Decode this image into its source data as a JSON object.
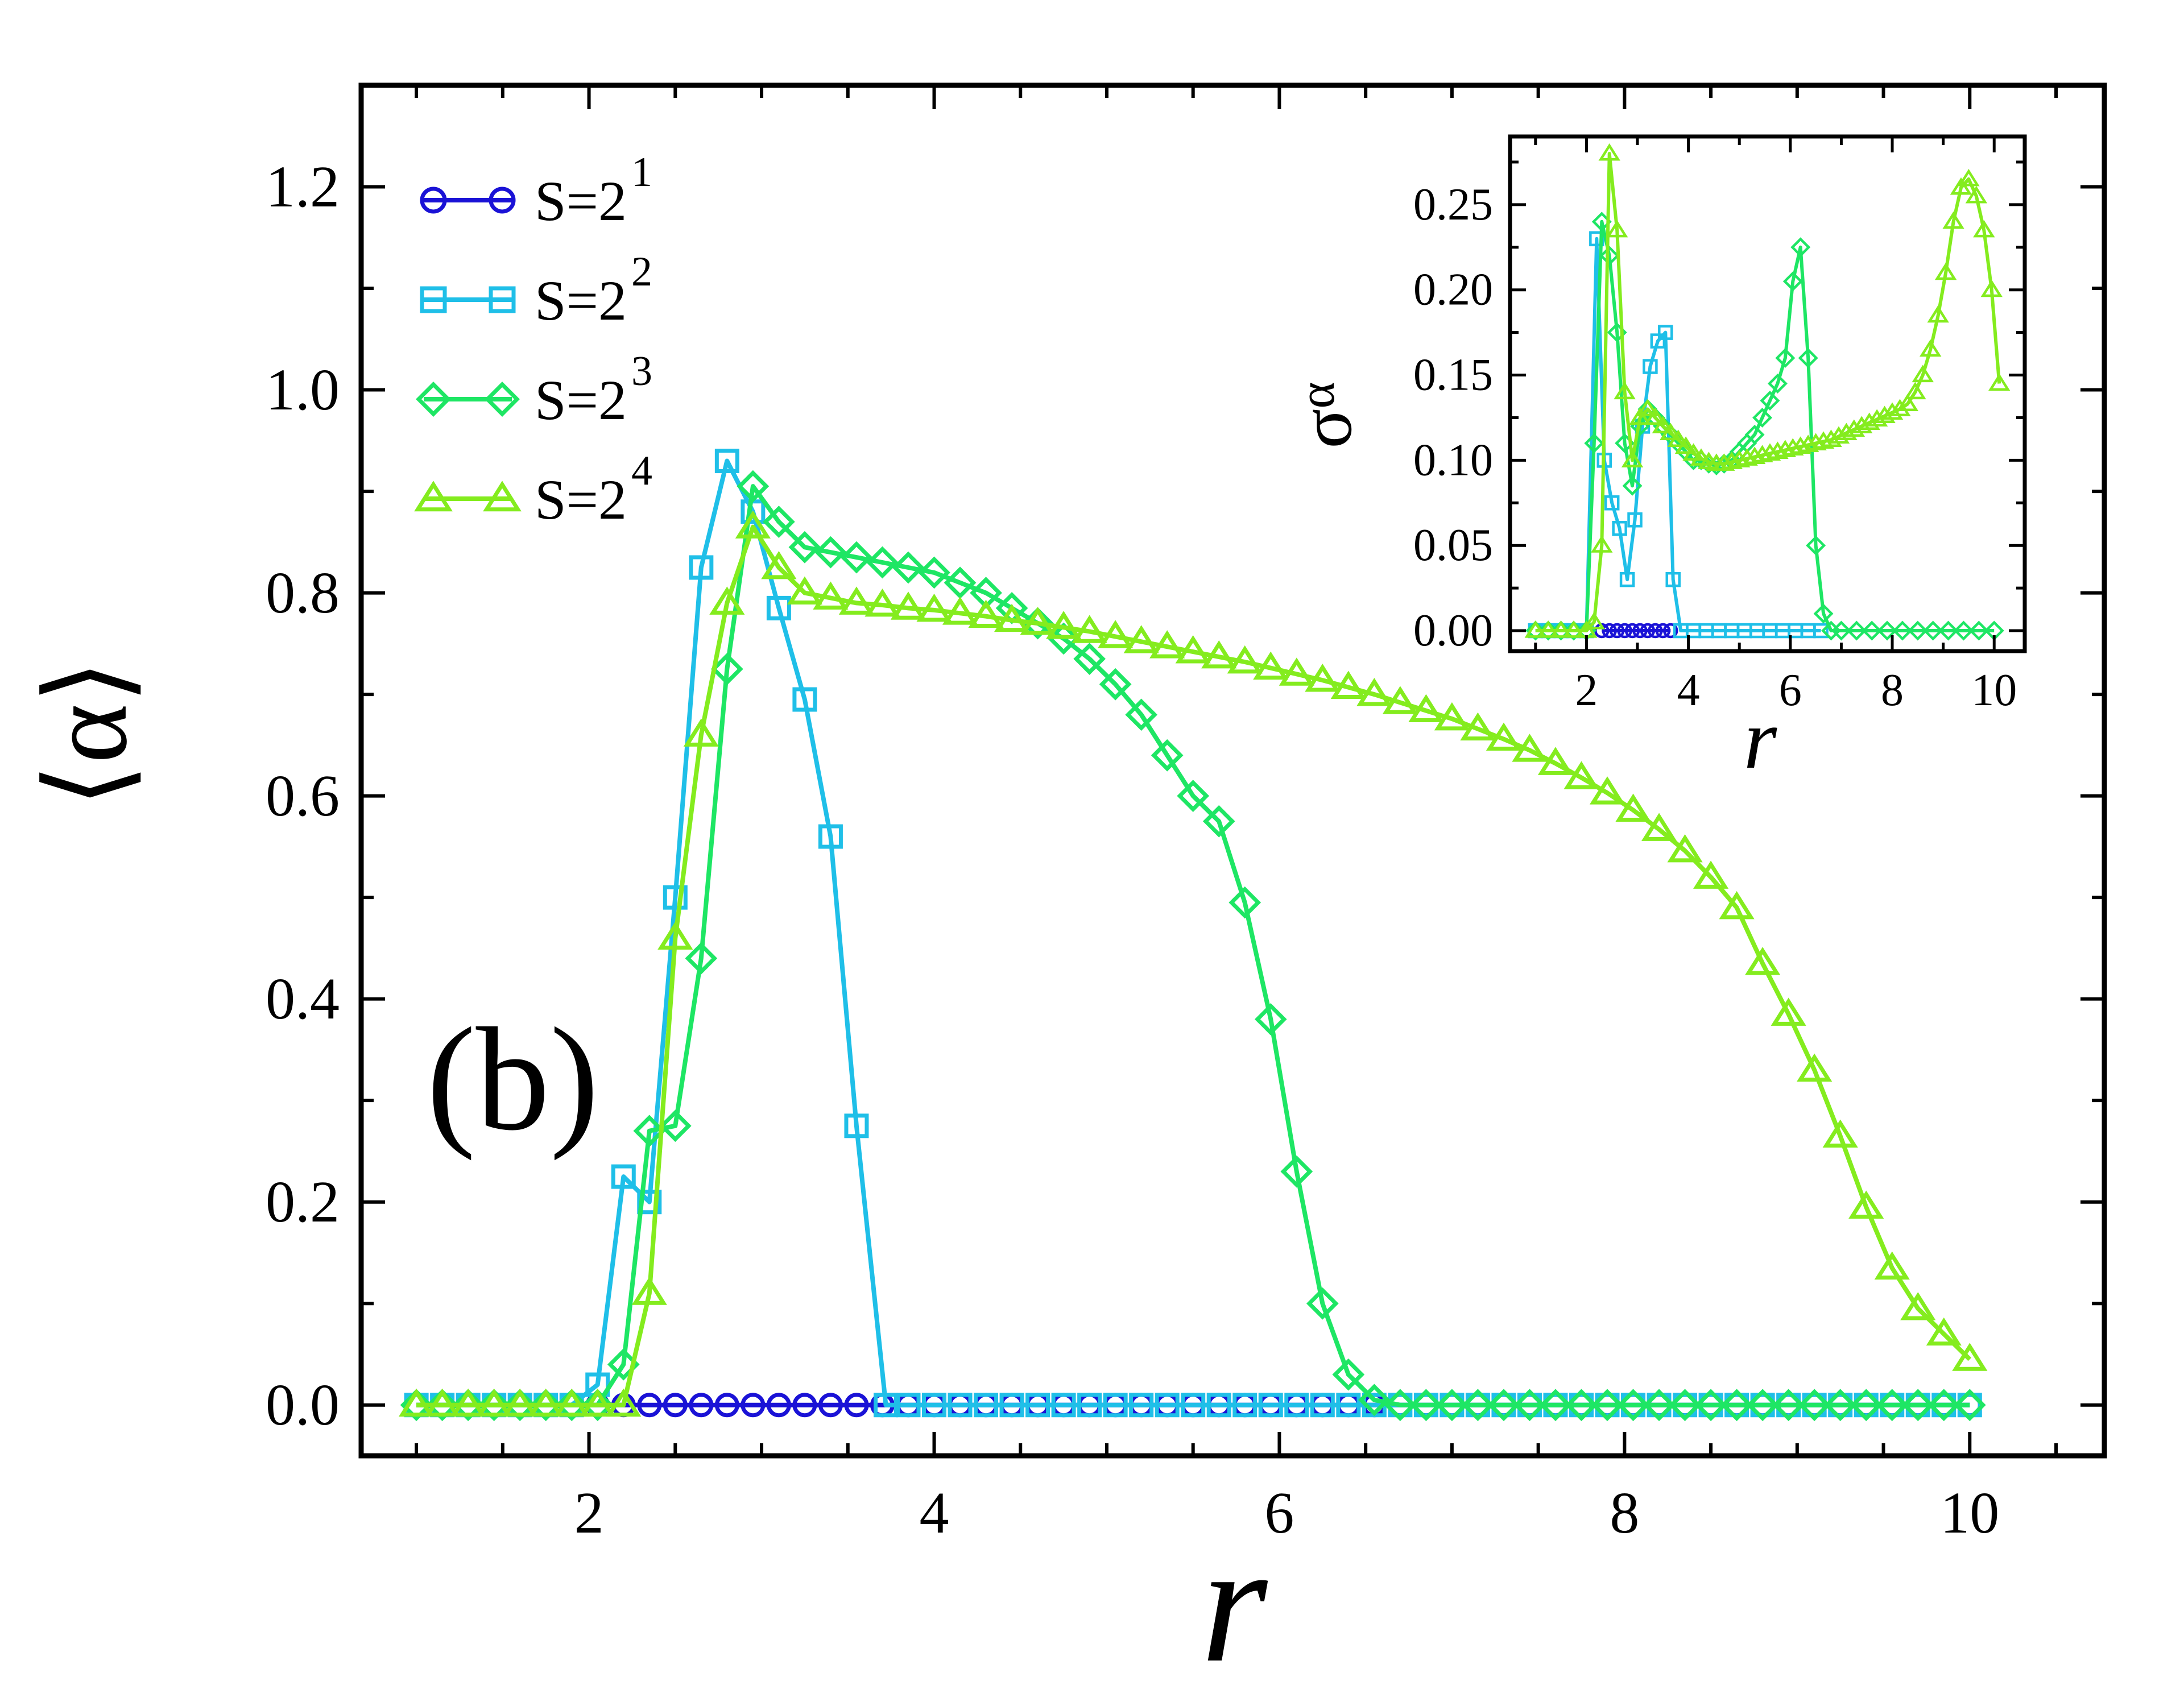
{
  "chart_data": {
    "type": "line",
    "panel_label": "(b)",
    "main": {
      "xlabel": "r",
      "ylabel": "⟨α⟩",
      "xlim": [
        0.68,
        10.78
      ],
      "ylim": [
        -0.05,
        1.3
      ],
      "xticks": [
        2,
        4,
        6,
        8,
        10
      ],
      "xtick_labels": [
        "2",
        "4",
        "6",
        "8",
        "10"
      ],
      "yticks": [
        0.0,
        0.2,
        0.4,
        0.6,
        0.8,
        1.0,
        1.2
      ],
      "ytick_labels": [
        "0.0",
        "0.2",
        "0.4",
        "0.6",
        "0.8",
        "1.0",
        "1.2"
      ],
      "legend_position": "top-left",
      "series": [
        {
          "name": "S=2^1",
          "label_base": "S=2",
          "label_exp": "1",
          "marker": "circle",
          "color": "#1a12d6",
          "x": [
            1.0,
            1.15,
            1.3,
            1.45,
            1.6,
            1.75,
            1.9,
            2.05,
            2.2,
            2.35,
            2.5,
            2.65,
            2.8,
            2.95,
            3.1,
            3.25,
            3.4,
            3.55,
            3.7,
            3.85,
            4.0,
            4.15,
            4.3,
            4.45,
            4.6,
            4.75,
            4.9,
            5.05,
            5.2,
            5.35,
            5.5,
            5.65,
            5.8,
            5.95,
            6.1,
            6.25,
            6.4,
            6.55,
            6.7,
            6.85,
            7.0,
            7.15,
            7.3,
            7.45,
            7.6,
            7.75,
            7.9,
            8.05,
            8.2,
            8.35,
            8.5,
            8.65,
            8.8,
            8.95,
            9.1,
            9.25,
            9.4,
            9.55,
            9.7,
            9.85,
            10.0
          ],
          "y": [
            0,
            0,
            0,
            0,
            0,
            0,
            0,
            0,
            0,
            0,
            0,
            0,
            0,
            0,
            0,
            0,
            0,
            0,
            0,
            0,
            0,
            0,
            0,
            0,
            0,
            0,
            0,
            0,
            0,
            0,
            0,
            0,
            0,
            0,
            0,
            0,
            0,
            0,
            0,
            0,
            0,
            0,
            0,
            0,
            0,
            0,
            0,
            0,
            0,
            0,
            0,
            0,
            0,
            0,
            0,
            0,
            0,
            0,
            0,
            0,
            0
          ]
        },
        {
          "name": "S=2^2",
          "label_base": "S=2",
          "label_exp": "2",
          "marker": "square",
          "color": "#1fbfe8",
          "x": [
            1.0,
            1.15,
            1.3,
            1.45,
            1.6,
            1.75,
            1.9,
            2.05,
            2.2,
            2.35,
            2.5,
            2.65,
            2.8,
            2.95,
            3.1,
            3.25,
            3.4,
            3.55,
            3.72,
            3.85,
            4.0,
            4.15,
            4.3,
            4.45,
            4.6,
            4.75,
            4.9,
            5.05,
            5.2,
            5.35,
            5.5,
            5.65,
            5.8,
            5.95,
            6.1,
            6.25,
            6.4,
            6.55,
            6.7,
            6.85,
            7.0,
            7.15,
            7.3,
            7.45,
            7.6,
            7.75,
            7.9,
            8.05,
            8.2,
            8.35,
            8.5,
            8.65,
            8.8,
            8.95,
            9.1,
            9.25,
            9.4,
            9.55,
            9.7,
            9.85,
            10.0
          ],
          "y": [
            0,
            0,
            0,
            0,
            0,
            0,
            0,
            0.02,
            0.225,
            0.2,
            0.5,
            0.825,
            0.93,
            0.88,
            0.785,
            0.695,
            0.56,
            0.275,
            0,
            0,
            0,
            0,
            0,
            0,
            0,
            0,
            0,
            0,
            0,
            0,
            0,
            0,
            0,
            0,
            0,
            0,
            0,
            0,
            0,
            0,
            0,
            0,
            0,
            0,
            0,
            0,
            0,
            0,
            0,
            0,
            0,
            0,
            0,
            0,
            0,
            0,
            0,
            0,
            0,
            0,
            0
          ]
        },
        {
          "name": "S=2^3",
          "label_base": "S=2",
          "label_exp": "3",
          "marker": "diamond",
          "color": "#1ee664",
          "x": [
            1.0,
            1.15,
            1.3,
            1.45,
            1.6,
            1.75,
            1.9,
            2.05,
            2.2,
            2.35,
            2.5,
            2.65,
            2.8,
            2.95,
            3.1,
            3.25,
            3.4,
            3.55,
            3.7,
            3.85,
            4.0,
            4.15,
            4.3,
            4.45,
            4.6,
            4.75,
            4.9,
            5.05,
            5.2,
            5.35,
            5.5,
            5.65,
            5.8,
            5.95,
            6.1,
            6.25,
            6.4,
            6.55,
            6.7,
            6.85,
            7.0,
            7.15,
            7.3,
            7.45,
            7.6,
            7.75,
            7.9,
            8.05,
            8.2,
            8.35,
            8.5,
            8.65,
            8.8,
            8.95,
            9.1,
            9.25,
            9.4,
            9.55,
            9.7,
            9.85,
            10.0
          ],
          "y": [
            0,
            0,
            0,
            0,
            0,
            0,
            0,
            0,
            0.04,
            0.27,
            0.275,
            0.44,
            0.725,
            0.905,
            0.87,
            0.845,
            0.84,
            0.835,
            0.83,
            0.825,
            0.82,
            0.81,
            0.8,
            0.785,
            0.77,
            0.755,
            0.735,
            0.71,
            0.68,
            0.64,
            0.6,
            0.575,
            0.495,
            0.38,
            0.23,
            0.1,
            0.03,
            0.005,
            0,
            0,
            0,
            0,
            0,
            0,
            0,
            0,
            0,
            0,
            0,
            0,
            0,
            0,
            0,
            0,
            0,
            0,
            0,
            0,
            0,
            0,
            0
          ]
        },
        {
          "name": "S=2^4",
          "label_base": "S=2",
          "label_exp": "4",
          "marker": "triangle",
          "color": "#84ec1e",
          "x": [
            1.0,
            1.15,
            1.3,
            1.45,
            1.6,
            1.75,
            1.9,
            2.05,
            2.2,
            2.35,
            2.5,
            2.65,
            2.8,
            2.95,
            3.1,
            3.25,
            3.4,
            3.55,
            3.7,
            3.85,
            4.0,
            4.15,
            4.3,
            4.45,
            4.6,
            4.75,
            4.9,
            5.05,
            5.2,
            5.35,
            5.5,
            5.65,
            5.8,
            5.95,
            6.1,
            6.25,
            6.4,
            6.55,
            6.7,
            6.85,
            7.0,
            7.15,
            7.3,
            7.45,
            7.6,
            7.75,
            7.9,
            8.05,
            8.2,
            8.35,
            8.5,
            8.65,
            8.8,
            8.95,
            9.1,
            9.25,
            9.4,
            9.55,
            9.7,
            9.85,
            10.0
          ],
          "y": [
            0,
            0,
            0,
            0,
            0,
            0,
            0,
            0,
            0,
            0.11,
            0.46,
            0.66,
            0.79,
            0.865,
            0.825,
            0.8,
            0.795,
            0.79,
            0.788,
            0.785,
            0.783,
            0.78,
            0.777,
            0.773,
            0.77,
            0.766,
            0.762,
            0.757,
            0.752,
            0.747,
            0.742,
            0.737,
            0.732,
            0.726,
            0.72,
            0.714,
            0.707,
            0.7,
            0.692,
            0.684,
            0.676,
            0.666,
            0.656,
            0.645,
            0.632,
            0.618,
            0.603,
            0.586,
            0.567,
            0.546,
            0.52,
            0.49,
            0.435,
            0.385,
            0.33,
            0.265,
            0.195,
            0.135,
            0.095,
            0.07,
            0.045
          ]
        }
      ]
    },
    "inset": {
      "type": "line",
      "xlabel": "r",
      "ylabel": "σ_α",
      "ylabel_base": "σ",
      "ylabel_sub": "α",
      "xlim": [
        0.5,
        10.6
      ],
      "ylim": [
        -0.012,
        0.29
      ],
      "xticks": [
        2,
        4,
        6,
        8,
        10
      ],
      "xtick_labels": [
        "2",
        "4",
        "6",
        "8",
        "10"
      ],
      "yticks": [
        0.0,
        0.05,
        0.1,
        0.15,
        0.2,
        0.25
      ],
      "ytick_labels": [
        "0.00",
        "0.05",
        "0.10",
        "0.15",
        "0.20",
        "0.25"
      ],
      "series": [
        {
          "name": "S=2^1",
          "marker": "circle",
          "color": "#1a12d6",
          "x": [
            2.3,
            2.45,
            2.6,
            2.75,
            2.9,
            3.05,
            3.2,
            3.35,
            3.5,
            3.65
          ],
          "y": [
            0,
            0,
            0,
            0,
            0,
            0,
            0,
            0,
            0,
            0
          ]
        },
        {
          "name": "S=2^2",
          "marker": "square",
          "color": "#1fbfe8",
          "x": [
            1.0,
            1.25,
            1.5,
            1.75,
            2.0,
            2.2,
            2.35,
            2.5,
            2.65,
            2.8,
            2.95,
            3.1,
            3.25,
            3.4,
            3.55,
            3.7,
            3.85,
            4.1,
            4.35,
            4.6,
            4.85,
            5.1,
            5.35,
            5.6,
            5.85,
            6.1,
            6.35,
            6.6
          ],
          "y": [
            0,
            0,
            0,
            0,
            0,
            0.23,
            0.1,
            0.075,
            0.06,
            0.03,
            0.065,
            0.12,
            0.155,
            0.17,
            0.175,
            0.03,
            0,
            0,
            0,
            0,
            0,
            0,
            0,
            0,
            0,
            0,
            0,
            0
          ]
        },
        {
          "name": "S=2^3",
          "marker": "diamond",
          "color": "#1ee664",
          "x": [
            1.0,
            1.25,
            1.5,
            1.75,
            2.0,
            2.15,
            2.3,
            2.45,
            2.6,
            2.75,
            2.9,
            3.05,
            3.2,
            3.35,
            3.5,
            3.65,
            3.8,
            3.95,
            4.1,
            4.25,
            4.4,
            4.55,
            4.7,
            4.85,
            5.0,
            5.15,
            5.3,
            5.45,
            5.6,
            5.75,
            5.9,
            6.05,
            6.2,
            6.35,
            6.5,
            6.65,
            6.8,
            7.0,
            7.3,
            7.6,
            7.9,
            8.2,
            8.5,
            8.8,
            9.1,
            9.4,
            9.7,
            10.0
          ],
          "y": [
            0,
            0,
            0,
            0,
            0,
            0.11,
            0.24,
            0.22,
            0.175,
            0.11,
            0.085,
            0.12,
            0.13,
            0.125,
            0.12,
            0.115,
            0.11,
            0.105,
            0.1,
            0.1,
            0.098,
            0.097,
            0.098,
            0.1,
            0.105,
            0.11,
            0.115,
            0.125,
            0.135,
            0.145,
            0.16,
            0.205,
            0.225,
            0.16,
            0.05,
            0.01,
            0,
            0,
            0,
            0,
            0,
            0,
            0,
            0,
            0,
            0,
            0,
            0
          ]
        },
        {
          "name": "S=2^4",
          "marker": "triangle",
          "color": "#84ec1e",
          "x": [
            1.0,
            1.25,
            1.5,
            1.75,
            2.0,
            2.15,
            2.3,
            2.45,
            2.6,
            2.75,
            2.9,
            3.05,
            3.2,
            3.35,
            3.5,
            3.65,
            3.8,
            3.95,
            4.1,
            4.25,
            4.4,
            4.55,
            4.7,
            4.85,
            5.0,
            5.15,
            5.3,
            5.45,
            5.6,
            5.75,
            5.9,
            6.05,
            6.2,
            6.35,
            6.5,
            6.65,
            6.8,
            6.95,
            7.1,
            7.25,
            7.4,
            7.55,
            7.7,
            7.85,
            8.0,
            8.15,
            8.3,
            8.45,
            8.6,
            8.75,
            8.9,
            9.05,
            9.2,
            9.35,
            9.5,
            9.65,
            9.8,
            9.95,
            10.1
          ],
          "y": [
            0,
            0,
            0,
            0,
            0,
            0.005,
            0.05,
            0.28,
            0.235,
            0.14,
            0.1,
            0.125,
            0.13,
            0.125,
            0.12,
            0.116,
            0.112,
            0.108,
            0.104,
            0.101,
            0.099,
            0.098,
            0.098,
            0.099,
            0.1,
            0.101,
            0.102,
            0.103,
            0.104,
            0.105,
            0.106,
            0.107,
            0.108,
            0.109,
            0.11,
            0.111,
            0.112,
            0.114,
            0.116,
            0.118,
            0.12,
            0.122,
            0.124,
            0.126,
            0.128,
            0.13,
            0.133,
            0.14,
            0.15,
            0.165,
            0.185,
            0.21,
            0.24,
            0.26,
            0.265,
            0.255,
            0.235,
            0.2,
            0.145
          ]
        }
      ]
    }
  }
}
